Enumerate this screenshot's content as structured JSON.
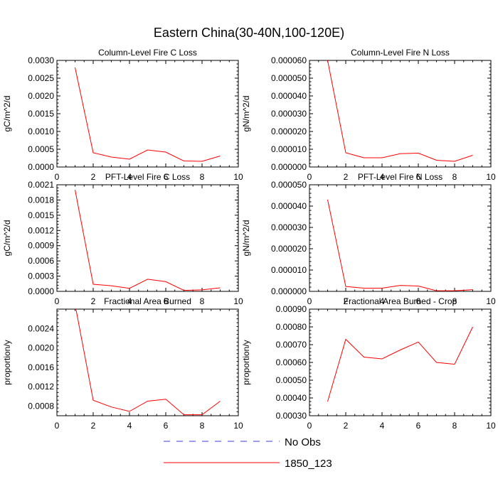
{
  "figure": {
    "title": "Eastern China(30-40N,100-120E)"
  },
  "legend": {
    "entries": [
      {
        "label": "No Obs",
        "color": "#3b3bd6",
        "dashed": true
      },
      {
        "label": "1850_123",
        "color": "#ff0000",
        "dashed": false
      }
    ]
  },
  "chart_data": [
    {
      "type": "line",
      "title": "Column-Level Fire C Loss",
      "ylabel": "gC/m^2/d",
      "xlim": [
        0,
        10
      ],
      "ylim": [
        0,
        0.003
      ],
      "x_ticks": [
        "0",
        "2",
        "4",
        "6",
        "8",
        "10"
      ],
      "y_ticks": [
        "0.0000",
        "0.0005",
        "0.0010",
        "0.0015",
        "0.0020",
        "0.0025",
        "0.0030"
      ],
      "series": [
        {
          "name": "1850_123",
          "x": [
            1,
            2,
            3,
            4,
            5,
            6,
            7,
            8,
            9
          ],
          "values": [
            0.0028,
            0.0004,
            0.00028,
            0.00022,
            0.00048,
            0.00042,
            0.00017,
            0.00016,
            0.00031
          ]
        }
      ]
    },
    {
      "type": "line",
      "title": "Column-Level Fire N Loss",
      "ylabel": "gN/m^2/d",
      "xlim": [
        0,
        10
      ],
      "ylim": [
        0,
        6e-05
      ],
      "x_ticks": [
        "0",
        "2",
        "4",
        "6",
        "8",
        "10"
      ],
      "y_ticks": [
        "0.000000",
        "0.000010",
        "0.000020",
        "0.000030",
        "0.000040",
        "0.000050",
        "0.000060"
      ],
      "series": [
        {
          "name": "1850_123",
          "x": [
            1,
            2,
            3,
            4,
            5,
            6,
            7,
            8,
            9
          ],
          "values": [
            6e-05,
            8e-06,
            5.2e-06,
            5.2e-06,
            7.5e-06,
            7.8e-06,
            3.8e-06,
            3.2e-06,
            6.6e-06
          ]
        }
      ]
    },
    {
      "type": "line",
      "title": "PFT-Level Fire C Loss",
      "ylabel": "gC/m^2/d",
      "xlim": [
        0,
        10
      ],
      "ylim": [
        0,
        0.0021
      ],
      "x_ticks": [
        "0",
        "2",
        "4",
        "6",
        "8",
        "10"
      ],
      "y_ticks": [
        "0.0000",
        "0.0003",
        "0.0006",
        "0.0009",
        "0.0012",
        "0.0015",
        "0.0018",
        "0.0021"
      ],
      "series": [
        {
          "name": "1850_123",
          "x": [
            1,
            2,
            3,
            4,
            5,
            6,
            7,
            8,
            9
          ],
          "values": [
            0.002,
            0.00014,
            0.00011,
            6e-05,
            0.00024,
            0.00019,
            2e-05,
            3e-05,
            7e-05
          ]
        }
      ]
    },
    {
      "type": "line",
      "title": "PFT-Level Fire N Loss",
      "ylabel": "gN/m^2/d",
      "xlim": [
        0,
        10
      ],
      "ylim": [
        0,
        5e-05
      ],
      "x_ticks": [
        "0",
        "2",
        "4",
        "6",
        "8",
        "10"
      ],
      "y_ticks": [
        "0.000000",
        "0.000010",
        "0.000020",
        "0.000030",
        "0.000040",
        "0.000050"
      ],
      "series": [
        {
          "name": "1850_123",
          "x": [
            1,
            2,
            3,
            4,
            5,
            6,
            7,
            8,
            9
          ],
          "values": [
            4.3e-05,
            2.3e-06,
            1.5e-06,
            1.5e-06,
            2.8e-06,
            2.5e-06,
            3e-07,
            3e-07,
            8e-07
          ]
        }
      ]
    },
    {
      "type": "line",
      "title": "Fractional Area Burned",
      "ylabel": "proportion/y",
      "xlim": [
        0,
        10
      ],
      "ylim": [
        0.0006,
        0.0028
      ],
      "x_ticks": [
        "0",
        "2",
        "4",
        "6",
        "8",
        "10"
      ],
      "y_ticks": [
        "0.0008",
        "0.0012",
        "0.0016",
        "0.0020",
        "0.0024"
      ],
      "y_tick_values": [
        0.0008,
        0.0012,
        0.0016,
        0.002,
        0.0024
      ],
      "series": [
        {
          "name": "1850_123",
          "x": [
            1,
            2,
            3,
            4,
            5,
            6,
            7,
            8,
            9
          ],
          "values": [
            0.0029,
            0.00092,
            0.00078,
            0.00069,
            0.0009,
            0.00094,
            0.00062,
            0.00062,
            0.0009
          ]
        }
      ]
    },
    {
      "type": "line",
      "title": "Fractional Area Burned - Crop",
      "ylabel": "proportion/y",
      "xlim": [
        0,
        10
      ],
      "ylim": [
        0.0003,
        0.0009
      ],
      "x_ticks": [
        "0",
        "2",
        "4",
        "6",
        "8",
        "10"
      ],
      "y_ticks": [
        "0.00030",
        "0.00040",
        "0.00050",
        "0.00060",
        "0.00070",
        "0.00080",
        "0.00090"
      ],
      "series": [
        {
          "name": "1850_123",
          "x": [
            1,
            2,
            3,
            4,
            5,
            6,
            7,
            8,
            9
          ],
          "values": [
            0.00038,
            0.00073,
            0.00063,
            0.00062,
            0.00067,
            0.000715,
            0.0006,
            0.00059,
            0.0008
          ]
        }
      ]
    }
  ]
}
